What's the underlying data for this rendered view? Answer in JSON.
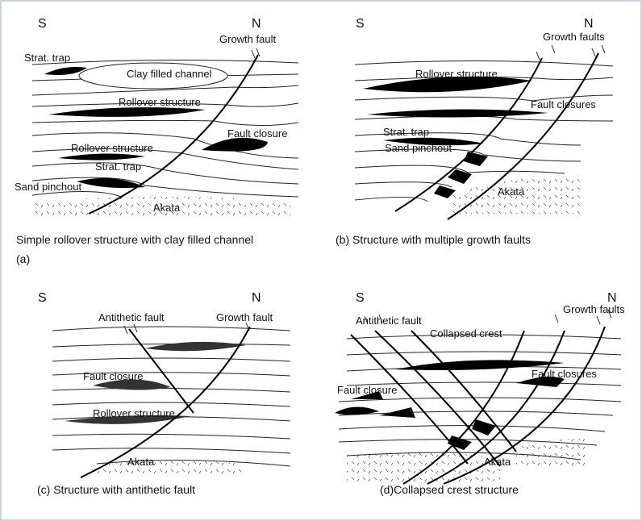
{
  "panels": [
    {
      "south": "S",
      "north": "N",
      "labels": [
        "Growth fault",
        "Strat. trap",
        "Clay filled channel",
        "Rollover structure",
        "Fault closure",
        "Rollover structure",
        "Strat. trap",
        "Sand pinchout",
        "Akata"
      ],
      "caption": "Simple rollover structure with clay filled channel",
      "tag": "(a)"
    },
    {
      "south": "S",
      "north": "N",
      "labels": [
        "Growth faults",
        "Rollover structure",
        "Fault closures",
        "Strat. trap",
        "Sand pinchout",
        "Akata"
      ],
      "caption": "(b) Structure with multiple growth faults"
    },
    {
      "south": "S",
      "north": "N",
      "labels": [
        "Antithetic fault",
        "Growth fault",
        "Fault closure",
        "Rollover structure",
        "Akata"
      ],
      "caption": "(c) Structure with antithetic fault"
    },
    {
      "south": "S",
      "north": "N",
      "labels": [
        "Antithetic fault",
        "Collapsed crest",
        "Growth faults",
        "Fault closures",
        "Fault closure",
        "Akata"
      ],
      "caption": "(d)Collapsed crest structure"
    }
  ]
}
